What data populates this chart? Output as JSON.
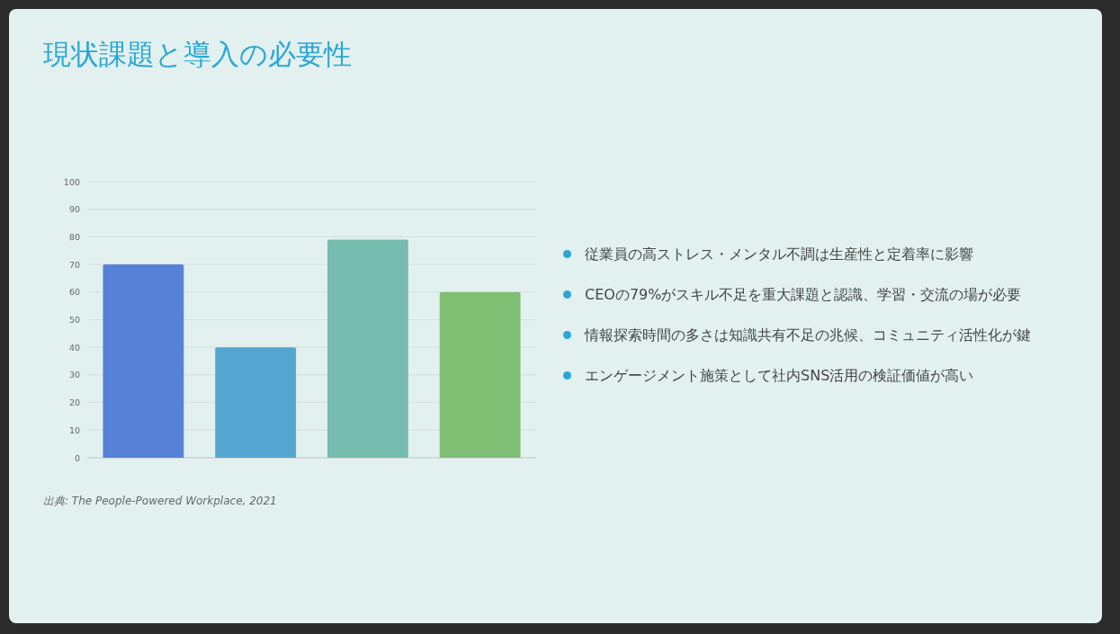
{
  "chart_data": [
    {
      "type": "bar",
      "title": "現状課題と導入の必要性",
      "categories": [
        null,
        null,
        null,
        null
      ],
      "values": [
        70,
        40,
        79,
        60
      ],
      "colors": [
        "#5681d6",
        "#55a7d2",
        "#76bcae",
        "#7ebf74"
      ],
      "ylim": [
        0,
        100
      ],
      "yticks": [
        0,
        10,
        20,
        30,
        40,
        50,
        60,
        70,
        80,
        90,
        100
      ],
      "grid": "y",
      "annotations": [
        "出典: The People-Powered Workplace, 2021"
      ]
    },
    {
      "type": "other",
      "annotations": [
        "従業員の高ストレス・メンタル不調は生産性と定着率に影響",
        "CEOの79%がスキル不足を重大課題と認識、学習・交流の場が必要",
        "情報探索時間の多さは知識共有不足の兆候、コミュニティ活性化が鍵",
        "エンゲージメント施策として社内SNS活用の検証価値が高い"
      ]
    }
  ]
}
